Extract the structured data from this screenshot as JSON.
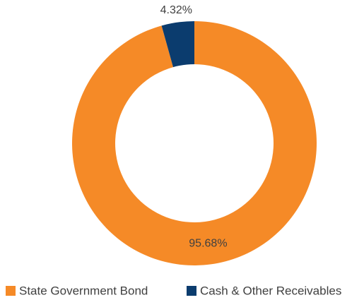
{
  "chart_data": {
    "type": "pie",
    "categories": [
      "State Government Bond",
      "Cash & Other Receivables"
    ],
    "values": [
      95.68,
      4.32
    ],
    "value_labels": [
      "95.68%",
      "4.32%"
    ],
    "colors": [
      "#f58a27",
      "#0b3c6e"
    ],
    "legend": "bottom"
  }
}
